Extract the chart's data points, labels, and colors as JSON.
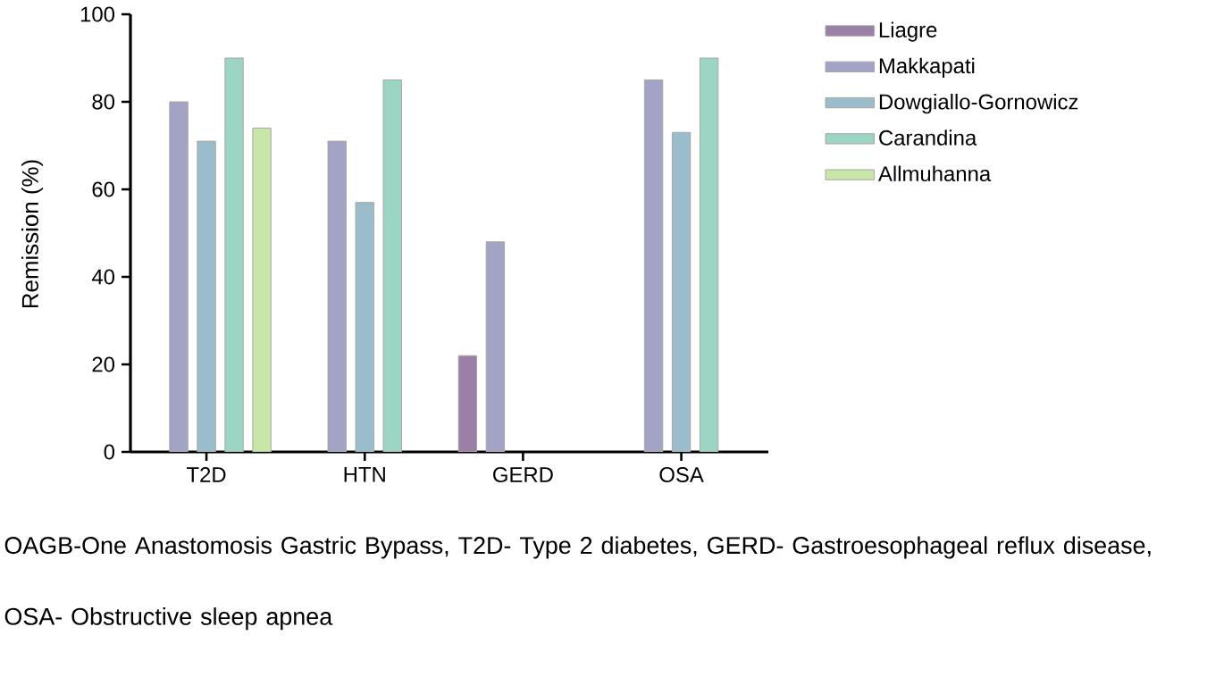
{
  "chart_data": {
    "type": "bar",
    "categories": [
      "T2D",
      "HTN",
      "GERD",
      "OSA"
    ],
    "ylabel": "Remission (%)",
    "ylim": [
      0,
      100
    ],
    "yticks": [
      0,
      20,
      40,
      60,
      80,
      100
    ],
    "series": [
      {
        "name": "Liagre",
        "color": "#9b7fa6",
        "values": [
          null,
          null,
          22,
          null
        ]
      },
      {
        "name": "Makkapati",
        "color": "#a3a3c6",
        "values": [
          80,
          71,
          48,
          85
        ]
      },
      {
        "name": "Dowgiallo-Gornowicz",
        "color": "#9bbccb",
        "values": [
          71,
          57,
          null,
          73
        ]
      },
      {
        "name": "Carandina",
        "color": "#9dd5c4",
        "values": [
          90,
          85,
          null,
          90
        ]
      },
      {
        "name": "Allmuhanna",
        "color": "#c7e6a8",
        "values": [
          74,
          null,
          null,
          null
        ]
      }
    ],
    "legend": "top right",
    "grid": false,
    "annotations": [
      "OAGB-One Anastomosis Gastric Bypass, T2D- Type 2 diabetes, GERD- Gastroesophageal reflux disease, OSA- Obstructive sleep apnea"
    ]
  }
}
